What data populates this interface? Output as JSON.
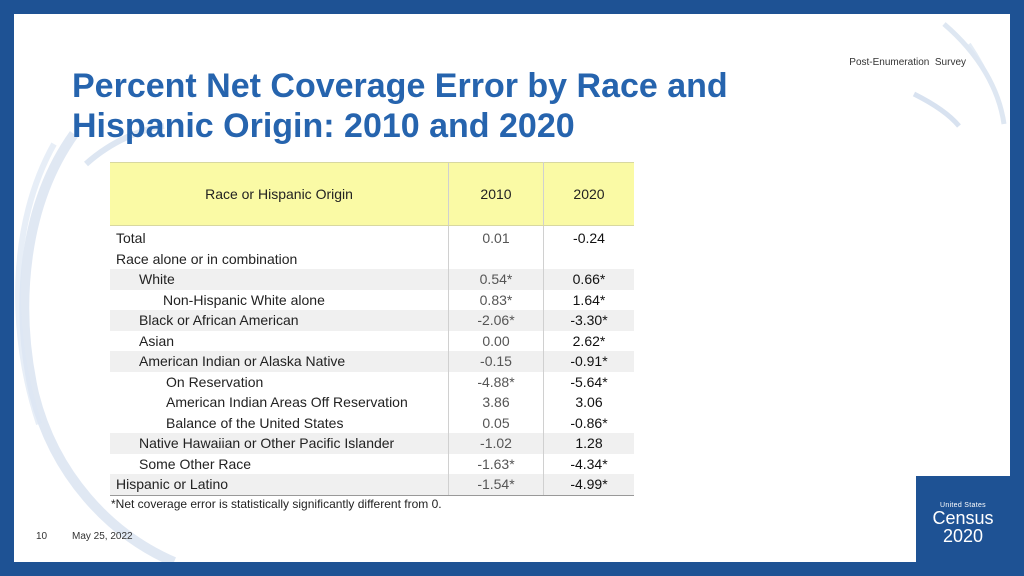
{
  "header": {
    "survey_label": "Post-Enumeration  Survey",
    "title_line1": "Percent Net Coverage Error by Race and",
    "title_line2": "Hispanic Origin: 2010 and 2020"
  },
  "table": {
    "columns": [
      "Race or Hispanic Origin",
      "2010",
      "2020"
    ],
    "rows": [
      {
        "label": "Total",
        "v2010": "0.01",
        "v2020": "-0.24"
      },
      {
        "label": "Race alone or in combination",
        "v2010": "",
        "v2020": ""
      },
      {
        "label": "White",
        "v2010": "0.54*",
        "v2020": "0.66*"
      },
      {
        "label": "Non-Hispanic White alone",
        "v2010": "0.83*",
        "v2020": "1.64*"
      },
      {
        "label": "Black or African American",
        "v2010": "-2.06*",
        "v2020": "-3.30*"
      },
      {
        "label": "Asian",
        "v2010": "0.00",
        "v2020": "2.62*"
      },
      {
        "label": "American Indian or Alaska Native",
        "v2010": "-0.15",
        "v2020": "-0.91*"
      },
      {
        "label": "On Reservation",
        "v2010": "-4.88*",
        "v2020": "-5.64*"
      },
      {
        "label": "American Indian Areas Off Reservation",
        "v2010": "3.86",
        "v2020": "3.06"
      },
      {
        "label": "Balance of the United States",
        "v2010": "0.05",
        "v2020": "-0.86*"
      },
      {
        "label": "Native Hawaiian or Other Pacific Islander",
        "v2010": "-1.02",
        "v2020": "1.28"
      },
      {
        "label": "Some Other Race",
        "v2010": "-1.63*",
        "v2020": "-4.34*"
      },
      {
        "label": "Hispanic or Latino",
        "v2010": "-1.54*",
        "v2020": "-4.99*"
      }
    ]
  },
  "footnote": "*Net coverage error is statistically significantly different from 0.",
  "footer": {
    "page_number": "10",
    "date": "May 25, 2022"
  },
  "logo": {
    "small_text": "United States",
    "census": "Census",
    "year": "2020"
  },
  "colors": {
    "brand_blue": "#1e5294",
    "title_blue": "#2664ae",
    "header_yellow": "#fafaa5"
  }
}
